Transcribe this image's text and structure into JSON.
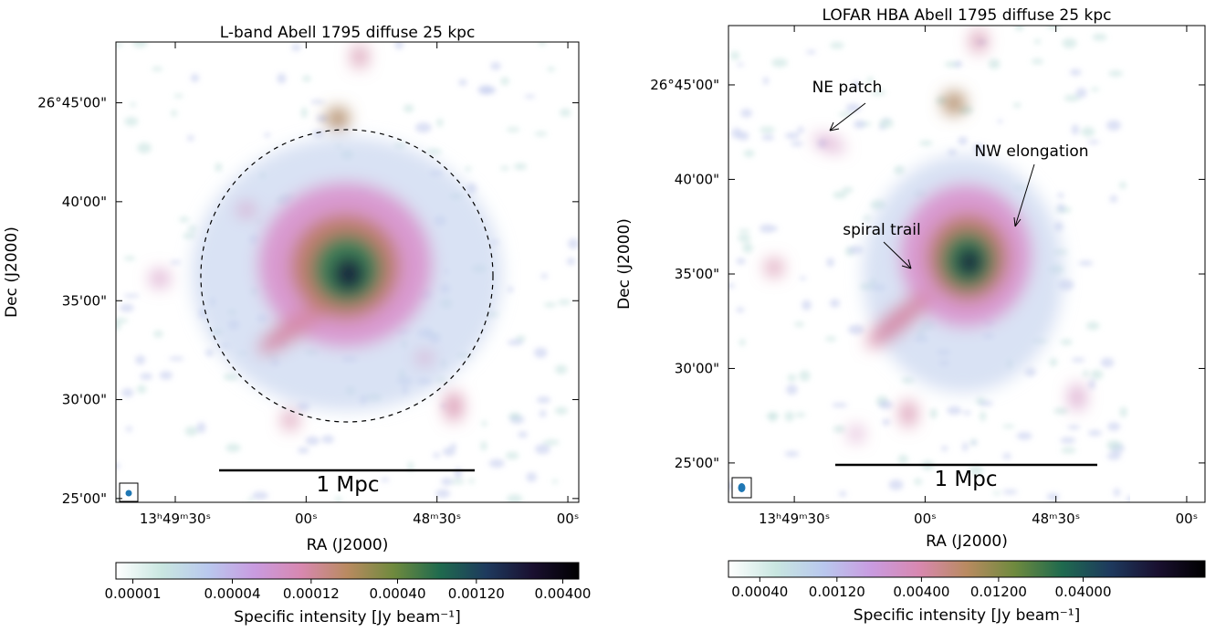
{
  "chart_data": [
    {
      "type": "image",
      "title": "L-band Abell 1795 diffuse 25 kpc",
      "xlabel": "RA (J2000)",
      "ylabel": "Dec (J2000)",
      "xlim": [
        49783.6,
        49677.5
      ],
      "ylim": [
        26.4135,
        26.8012
      ],
      "xticks": [
        {
          "value": 49770,
          "label": "13ʰ49ᵐ30ˢ"
        },
        {
          "value": 49740,
          "label": "00ˢ"
        },
        {
          "value": 49710,
          "label": "48ᵐ30ˢ"
        },
        {
          "value": 49680,
          "label": "00ˢ"
        }
      ],
      "yticks": [
        {
          "value": 26.75,
          "label": "26°45'00\""
        },
        {
          "value": 26.6667,
          "label": "40'00\""
        },
        {
          "value": 26.5833,
          "label": "35'00\""
        },
        {
          "value": 26.5,
          "label": "30'00\""
        },
        {
          "value": 26.4167,
          "label": "25'00\""
        }
      ],
      "scalebar": "1 Mpc",
      "colorbar": {
        "label": "Specific intensity [Jy beam⁻¹]",
        "scale": "log",
        "lim": [
          7.9e-06,
          0.005
        ],
        "ticks": [
          {
            "value": 1e-05,
            "label": "0.00001"
          },
          {
            "value": 4e-05,
            "label": "0.00004"
          },
          {
            "value": 0.00012,
            "label": "0.00012"
          },
          {
            "value": 0.0004,
            "label": "0.00040"
          },
          {
            "value": 0.0012,
            "label": "0.00120"
          },
          {
            "value": 0.004,
            "label": "0.00400"
          }
        ],
        "colormap": [
          "#ffffff",
          "#c8e6e0",
          "#b9c8ee",
          "#c99be0",
          "#d888b0",
          "#b98a60",
          "#6f8a3e",
          "#1f6a4e",
          "#1e3a5e",
          "#1a1030",
          "#000000"
        ]
      }
    },
    {
      "type": "image",
      "title": "LOFAR HBA Abell 1795 diffuse 25 kpc",
      "xlabel": "RA (J2000)",
      "ylabel": "Dec (J2000)",
      "xlim": [
        49785.1,
        49675.8
      ],
      "ylim": [
        26.382,
        26.8023
      ],
      "xticks": [
        {
          "value": 49770,
          "label": "13ʰ49ᵐ30ˢ"
        },
        {
          "value": 49740,
          "label": "00ˢ"
        },
        {
          "value": 49710,
          "label": "48ᵐ30ˢ"
        },
        {
          "value": 49680,
          "label": "00ˢ"
        }
      ],
      "yticks": [
        {
          "value": 26.75,
          "label": "26°45'00\""
        },
        {
          "value": 26.6667,
          "label": "40'00\""
        },
        {
          "value": 26.5833,
          "label": "35'00\""
        },
        {
          "value": 26.5,
          "label": "30'00\""
        },
        {
          "value": 26.4167,
          "label": "25'00\""
        }
      ],
      "scalebar": "1 Mpc",
      "annotations": [
        "NE patch",
        "NW elongation",
        "spiral trail"
      ],
      "colorbar": {
        "label": "Specific intensity [Jy beam⁻¹]",
        "scale": "log",
        "lim": [
          0.000256,
          0.227
        ],
        "ticks": [
          {
            "value": 0.0004,
            "label": "0.00040"
          },
          {
            "value": 0.0012,
            "label": "0.00120"
          },
          {
            "value": 0.004,
            "label": "0.00400"
          },
          {
            "value": 0.012,
            "label": "0.01200"
          },
          {
            "value": 0.04,
            "label": "0.04000"
          }
        ],
        "colormap": [
          "#ffffff",
          "#c8e6e0",
          "#b9c8ee",
          "#c99be0",
          "#d888b0",
          "#b98a60",
          "#6f8a3e",
          "#1f6a4e",
          "#1e3a5e",
          "#1a1030",
          "#000000"
        ]
      }
    }
  ]
}
